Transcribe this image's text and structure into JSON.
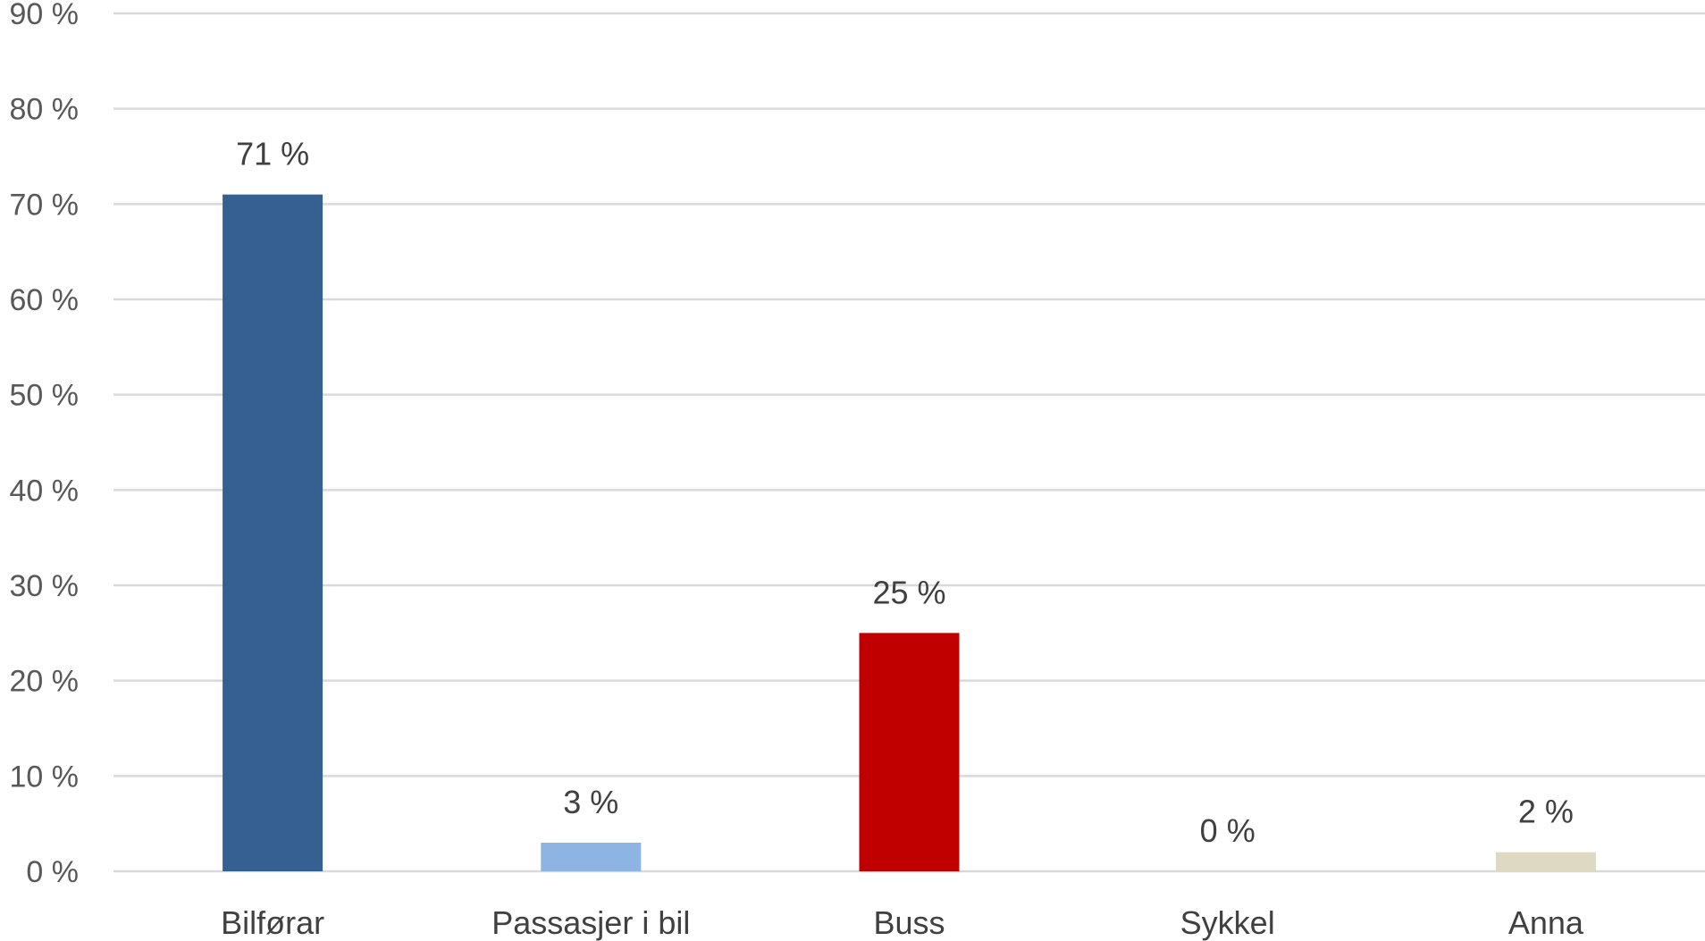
{
  "chart_data": {
    "type": "bar",
    "title": "",
    "xlabel": "",
    "ylabel": "",
    "categories": [
      "Bilførar",
      "Passasjer i bil",
      "Buss",
      "Sykkel",
      "Anna"
    ],
    "values": [
      71,
      3,
      25,
      0,
      2
    ],
    "data_labels": [
      "71 %",
      "3 %",
      "25 %",
      "0 %",
      "2 %"
    ],
    "bar_colors": [
      "#376092",
      "#8eb4e3",
      "#c00000",
      "#4f81bd",
      "#ddd9c3"
    ],
    "ylim": [
      0,
      90
    ],
    "yticks": [
      0,
      10,
      20,
      30,
      40,
      50,
      60,
      70,
      80,
      90
    ],
    "ytick_labels": [
      "0 %",
      "10 %",
      "20 %",
      "30 %",
      "40 %",
      "50 %",
      "60 %",
      "70 %",
      "80 %",
      "90 %"
    ],
    "grid": true,
    "legend": "none"
  }
}
